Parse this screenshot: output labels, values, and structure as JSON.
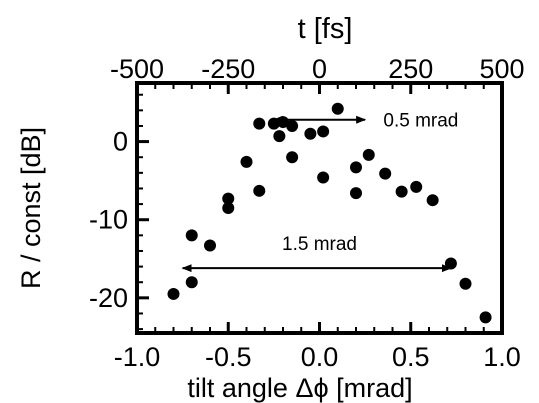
{
  "chart_data": {
    "type": "scatter",
    "xlabel": "tilt angle Δϕ [mrad]",
    "ylabel": "R / const [dB]",
    "top_xlabel": "t [fs]",
    "xlim": [
      -1.0,
      1.0
    ],
    "ylim": [
      -24.5,
      7.5
    ],
    "top_xlim": [
      -500,
      500
    ],
    "x_ticks": [
      -1.0,
      -0.5,
      0.0,
      0.5,
      1.0
    ],
    "x_tick_labels": [
      "-1.0",
      "-0.5",
      "0.0",
      "0.5",
      "1.0"
    ],
    "y_ticks": [
      0,
      -10,
      -20
    ],
    "y_tick_labels": [
      "0",
      "-10",
      "-20"
    ],
    "top_ticks": [
      -500,
      -250,
      0,
      250,
      500
    ],
    "top_tick_labels": [
      "-500",
      "-250",
      "0",
      "250",
      "500"
    ],
    "grid": false,
    "legend": "none",
    "marker_color": "#000000",
    "points": [
      {
        "x": -0.8,
        "y": -19.5
      },
      {
        "x": -0.7,
        "y": -18.0
      },
      {
        "x": -0.7,
        "y": -12.0
      },
      {
        "x": -0.6,
        "y": -13.3
      },
      {
        "x": -0.5,
        "y": -8.5
      },
      {
        "x": -0.5,
        "y": -7.3
      },
      {
        "x": -0.4,
        "y": -2.6
      },
      {
        "x": -0.33,
        "y": 2.3
      },
      {
        "x": -0.33,
        "y": -6.3
      },
      {
        "x": -0.25,
        "y": 2.3
      },
      {
        "x": -0.22,
        "y": 0.7
      },
      {
        "x": -0.2,
        "y": 2.5
      },
      {
        "x": -0.15,
        "y": 2.0
      },
      {
        "x": -0.15,
        "y": -2.0
      },
      {
        "x": -0.05,
        "y": 1.0
      },
      {
        "x": 0.02,
        "y": 1.3
      },
      {
        "x": 0.02,
        "y": -4.6
      },
      {
        "x": 0.1,
        "y": 4.2
      },
      {
        "x": 0.2,
        "y": -3.3
      },
      {
        "x": 0.2,
        "y": -6.6
      },
      {
        "x": 0.27,
        "y": -1.7
      },
      {
        "x": 0.36,
        "y": -4.1
      },
      {
        "x": 0.45,
        "y": -6.4
      },
      {
        "x": 0.53,
        "y": -5.8
      },
      {
        "x": 0.62,
        "y": -7.5
      },
      {
        "x": 0.72,
        "y": -15.6
      },
      {
        "x": 0.8,
        "y": -18.2
      },
      {
        "x": 0.91,
        "y": -22.5
      }
    ],
    "annotations": [
      {
        "text": "0.5 mrad",
        "from": [
          -0.25,
          2.8
        ],
        "to": [
          0.25,
          2.8
        ],
        "label_at": [
          0.35,
          2.8
        ]
      },
      {
        "text": "1.5 mrad",
        "from": [
          -0.75,
          -16.2
        ],
        "to": [
          0.72,
          -16.2
        ],
        "label_at": [
          0.0,
          -13.0
        ]
      }
    ]
  }
}
